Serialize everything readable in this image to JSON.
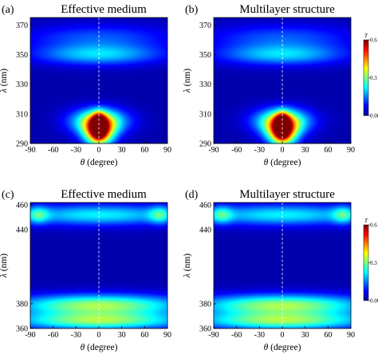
{
  "chart_data": [
    {
      "type": "heatmap",
      "panel_label": "(a)",
      "title": "Effective medium",
      "xlabel_symbol": "θ",
      "xlabel_text": " (degree)",
      "ylabel_symbol": "λ",
      "ylabel_text": " (nm)",
      "xlim": [
        -90,
        90
      ],
      "ylim": [
        290,
        375
      ],
      "x_ticks": [
        -90,
        -60,
        -30,
        0,
        30,
        60,
        90
      ],
      "y_ticks": [
        290,
        310,
        330,
        350,
        370
      ],
      "reference_line_x": 0,
      "features": [
        {
          "x": 0,
          "y": 350,
          "value": 0.18,
          "sx": 58,
          "sy": 5
        },
        {
          "x": 0,
          "y": 362,
          "value": 0.1,
          "sx": 70,
          "sy": 6
        },
        {
          "x": 0,
          "y": 302,
          "value": 0.6,
          "sx": 6,
          "sy": 5
        },
        {
          "x": 0,
          "y": 298,
          "value": 0.45,
          "sx": 14,
          "sy": 7
        },
        {
          "x": 0,
          "y": 305,
          "value": 0.3,
          "sx": 26,
          "sy": 6
        }
      ]
    },
    {
      "type": "heatmap",
      "panel_label": "(b)",
      "title": "Multilayer structure",
      "xlabel_symbol": "θ",
      "xlabel_text": " (degree)",
      "ylabel_symbol": "λ",
      "ylabel_text": " (nm)",
      "xlim": [
        -90,
        90
      ],
      "ylim": [
        290,
        375
      ],
      "x_ticks": [
        -90,
        -60,
        -30,
        0,
        30,
        60,
        90
      ],
      "y_ticks": [
        290,
        310,
        330,
        350,
        370
      ],
      "reference_line_x": 0,
      "colorbar": {
        "label": "T",
        "min": 0.0,
        "max": 0.6,
        "ticks": [
          0.0,
          0.3,
          0.6
        ],
        "tick_labels": [
          "0.00",
          "0.3",
          "0.6"
        ]
      },
      "features": [
        {
          "x": 0,
          "y": 350,
          "value": 0.18,
          "sx": 58,
          "sy": 5
        },
        {
          "x": 0,
          "y": 362,
          "value": 0.1,
          "sx": 70,
          "sy": 6
        },
        {
          "x": 0,
          "y": 302,
          "value": 0.6,
          "sx": 6,
          "sy": 5
        },
        {
          "x": 0,
          "y": 298,
          "value": 0.45,
          "sx": 14,
          "sy": 7
        },
        {
          "x": 0,
          "y": 305,
          "value": 0.3,
          "sx": 26,
          "sy": 6
        }
      ]
    },
    {
      "type": "heatmap",
      "panel_label": "(c)",
      "title": "Effective medium",
      "xlabel_symbol": "θ",
      "xlabel_text": " (degree)",
      "ylabel_symbol": "λ",
      "ylabel_text": " (nm)",
      "xlim": [
        -90,
        90
      ],
      "ylim": [
        360,
        462
      ],
      "x_ticks": [
        -90,
        -60,
        -30,
        0,
        30,
        60,
        90
      ],
      "y_ticks": [
        360,
        380,
        440,
        460
      ],
      "reference_line_x": 0,
      "features": [
        {
          "x": 0,
          "y": 379,
          "value": 0.3,
          "sx": 80,
          "sy": 6
        },
        {
          "x": 0,
          "y": 366,
          "value": 0.28,
          "sx": 80,
          "sy": 5
        },
        {
          "x": 0,
          "y": 452,
          "value": 0.2,
          "sx": 80,
          "sy": 6
        },
        {
          "x": -80,
          "y": 452,
          "value": 0.15,
          "sx": 10,
          "sy": 5
        },
        {
          "x": 80,
          "y": 452,
          "value": 0.15,
          "sx": 10,
          "sy": 5
        }
      ]
    },
    {
      "type": "heatmap",
      "panel_label": "(d)",
      "title": "Multilayer structure",
      "xlabel_symbol": "θ",
      "xlabel_text": " (degree)",
      "ylabel_symbol": "λ",
      "ylabel_text": " (nm)",
      "xlim": [
        -90,
        90
      ],
      "ylim": [
        360,
        462
      ],
      "x_ticks": [
        -90,
        -60,
        -30,
        0,
        30,
        60,
        90
      ],
      "y_ticks": [
        360,
        380,
        440,
        460
      ],
      "reference_line_x": 0,
      "colorbar": {
        "label": "T",
        "min": 0.0,
        "max": 0.6,
        "ticks": [
          0.0,
          0.3,
          0.6
        ],
        "tick_labels": [
          "0.00",
          "0.3",
          "0.6"
        ]
      },
      "features": [
        {
          "x": 0,
          "y": 379,
          "value": 0.3,
          "sx": 80,
          "sy": 6
        },
        {
          "x": 0,
          "y": 366,
          "value": 0.28,
          "sx": 80,
          "sy": 5
        },
        {
          "x": 0,
          "y": 452,
          "value": 0.2,
          "sx": 80,
          "sy": 6
        },
        {
          "x": -80,
          "y": 452,
          "value": 0.15,
          "sx": 10,
          "sy": 5
        },
        {
          "x": 80,
          "y": 452,
          "value": 0.15,
          "sx": 10,
          "sy": 5
        }
      ]
    }
  ],
  "colormap": [
    "#00008f",
    "#0000ff",
    "#0080ff",
    "#00ffff",
    "#80ff80",
    "#ffff00",
    "#ff8000",
    "#ff0000",
    "#800000"
  ]
}
